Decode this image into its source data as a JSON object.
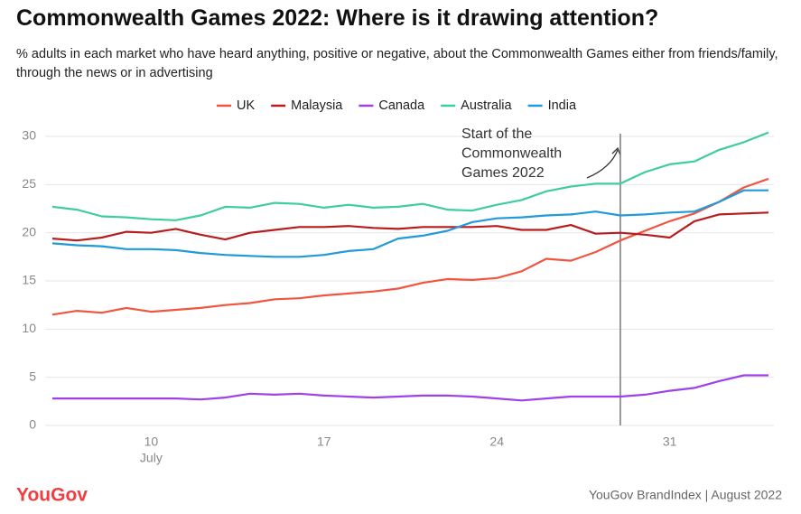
{
  "chart_data": {
    "type": "line",
    "title": "Commonwealth Games 2022: Where is it drawing attention?",
    "subtitle": "% adults in each market who have heard anything, positive or negative, about the Commonwealth Games either from friends/family, through the news or in advertising",
    "categories": [
      null,
      null,
      null,
      null,
      "10",
      null,
      null,
      null,
      null,
      null,
      null,
      "17",
      null,
      null,
      null,
      null,
      null,
      null,
      "24",
      null,
      null,
      null,
      null,
      null,
      null,
      "31",
      null,
      null,
      null,
      null
    ],
    "month_label": "July",
    "series": [
      {
        "name": "UK",
        "color": "#f0553f",
        "values": [
          11.5,
          11.9,
          11.7,
          12.2,
          11.8,
          12.0,
          12.2,
          12.5,
          12.7,
          13.1,
          13.2,
          13.5,
          13.7,
          13.9,
          14.2,
          14.8,
          15.2,
          15.1,
          15.3,
          16.0,
          17.3,
          17.1,
          18.0,
          19.2,
          20.2,
          21.2,
          22.0,
          23.2,
          24.7,
          25.6
        ]
      },
      {
        "name": "Malaysia",
        "color": "#b81c1c",
        "values": [
          19.4,
          19.2,
          19.5,
          20.1,
          20.0,
          20.4,
          19.8,
          19.3,
          20.0,
          20.3,
          20.6,
          20.6,
          20.7,
          20.5,
          20.4,
          20.6,
          20.6,
          20.6,
          20.7,
          20.3,
          20.3,
          20.8,
          19.9,
          20.0,
          19.8,
          19.5,
          21.2,
          21.9,
          22.0,
          22.1
        ]
      },
      {
        "name": "Canada",
        "color": "#a040e8",
        "values": [
          2.8,
          2.8,
          2.8,
          2.8,
          2.8,
          2.8,
          2.7,
          2.9,
          3.3,
          3.2,
          3.3,
          3.1,
          3.0,
          2.9,
          3.0,
          3.1,
          3.1,
          3.0,
          2.8,
          2.6,
          2.8,
          3.0,
          3.0,
          3.0,
          3.2,
          3.6,
          3.9,
          4.6,
          5.2,
          5.2
        ]
      },
      {
        "name": "Australia",
        "color": "#3fcc9f",
        "values": [
          22.7,
          22.4,
          21.7,
          21.6,
          21.4,
          21.3,
          21.8,
          22.7,
          22.6,
          23.1,
          23.0,
          22.6,
          22.9,
          22.6,
          22.7,
          23.0,
          22.4,
          22.3,
          22.9,
          23.4,
          24.3,
          24.8,
          25.1,
          25.1,
          26.3,
          27.1,
          27.4,
          28.6,
          29.4,
          30.4
        ]
      },
      {
        "name": "India",
        "color": "#2299d8",
        "values": [
          18.9,
          18.7,
          18.6,
          18.3,
          18.3,
          18.2,
          17.9,
          17.7,
          17.6,
          17.5,
          17.5,
          17.7,
          18.1,
          18.3,
          19.4,
          19.7,
          20.2,
          21.1,
          21.5,
          21.6,
          21.8,
          21.9,
          22.2,
          21.8,
          21.9,
          22.1,
          22.2,
          23.2,
          24.4,
          24.4
        ]
      }
    ],
    "ylim": [
      0,
      30
    ],
    "yticks": [
      0,
      5,
      10,
      15,
      20,
      25,
      30
    ],
    "grid": true,
    "legend": "top",
    "annotation": {
      "index": 23,
      "lines": [
        "Start of the",
        "Commonwealth",
        "Games 2022"
      ]
    },
    "logo": "YouGov",
    "source": "YouGov BrandIndex | August 2022"
  }
}
